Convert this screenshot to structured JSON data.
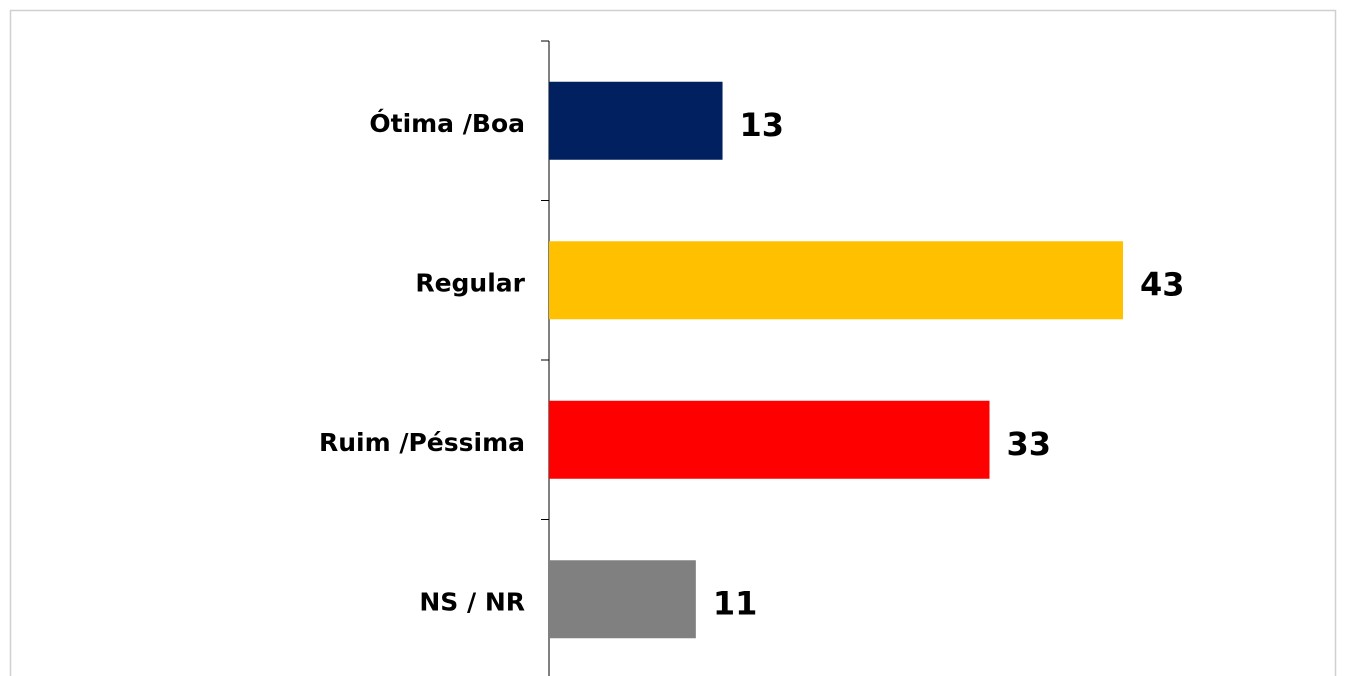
{
  "chart_data": {
    "type": "bar",
    "orientation": "horizontal",
    "categories": [
      "Ótima /Boa",
      "Regular",
      "Ruim /Péssima",
      "NS / NR"
    ],
    "values": [
      13,
      43,
      33,
      11
    ],
    "colors": [
      "#002060",
      "#FFC000",
      "#FF0000",
      "#808080"
    ]
  }
}
